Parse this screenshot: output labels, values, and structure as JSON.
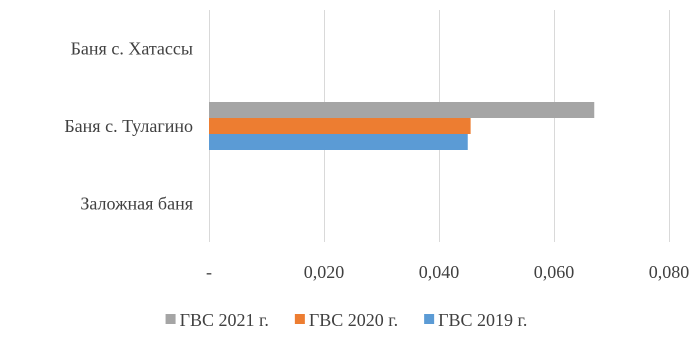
{
  "chart_data": {
    "type": "bar",
    "orientation": "horizontal",
    "categories": [
      "Баня с. Хатассы",
      "Баня с. Тулагино",
      "Заложная баня"
    ],
    "series": [
      {
        "name": "ГВС 2021 г.",
        "color": "#a5a5a5",
        "values": [
          0,
          0.067,
          0
        ]
      },
      {
        "name": "ГВС 2020 г.",
        "color": "#ed7d31",
        "values": [
          0,
          0.0455,
          0
        ]
      },
      {
        "name": "ГВС 2019 г.",
        "color": "#5b9bd5",
        "values": [
          0,
          0.045,
          0
        ]
      }
    ],
    "xlim": [
      0,
      0.08
    ],
    "xticks": [
      {
        "value": 0,
        "label": "-"
      },
      {
        "value": 0.02,
        "label": "0,020"
      },
      {
        "value": 0.04,
        "label": "0,040"
      },
      {
        "value": 0.06,
        "label": "0,060"
      },
      {
        "value": 0.08,
        "label": "0,080"
      }
    ],
    "grid": "vertical",
    "legend_position": "bottom"
  }
}
